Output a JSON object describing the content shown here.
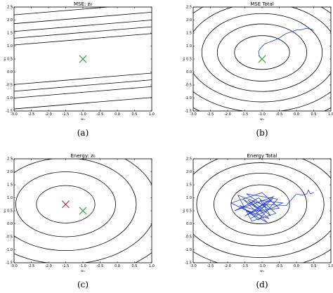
{
  "chart_data": [
    {
      "id": "a",
      "type": "contour",
      "title": "MSE: z₀",
      "caption": "(a)",
      "xlabel": "w₁",
      "ylabel": "w₂",
      "xlim": [
        -3.0,
        1.0
      ],
      "ylim": [
        -1.5,
        2.5
      ],
      "xticks": [
        "-3.0",
        "-2.5",
        "-2.0",
        "-1.5",
        "-1.0",
        "-0.5",
        "0.0",
        "0.5",
        "1.0"
      ],
      "yticks": [
        "-1.5",
        "-1.0",
        "-0.5",
        "0.0",
        "0.5",
        "1.0",
        "1.5",
        "2.0",
        "2.5"
      ],
      "contours": {
        "kind": "parallel_lines",
        "slope": 0.11,
        "center": [
          -1.0,
          0.5
        ],
        "offsets": [
          -1.7,
          -1.28,
          -1.02,
          -0.76,
          0.76,
          1.02,
          1.28,
          1.58,
          1.92
        ]
      },
      "markers": [
        {
          "x": -1.0,
          "y": 0.5,
          "symbol": "x",
          "color": "#2ca02c"
        }
      ],
      "path": []
    },
    {
      "id": "b",
      "type": "contour",
      "title": "MSE Total",
      "caption": "(b)",
      "xlabel": "w₁",
      "ylabel": "w₂",
      "xlim": [
        -3.0,
        1.0
      ],
      "ylim": [
        -1.5,
        2.5
      ],
      "xticks": [
        "-3.0",
        "-2.5",
        "-2.0",
        "-1.5",
        "-1.0",
        "-0.5",
        "0.0",
        "0.5",
        "1.0"
      ],
      "yticks": [
        "-1.5",
        "-1.0",
        "-0.5",
        "0.0",
        "0.5",
        "1.0",
        "1.5",
        "2.0",
        "2.5"
      ],
      "contours": {
        "kind": "ellipses",
        "center": [
          -1.0,
          0.75
        ],
        "radii": [
          [
            0.8,
            0.65
          ],
          [
            1.3,
            1.1
          ],
          [
            1.75,
            1.5
          ],
          [
            2.2,
            1.9
          ],
          [
            2.65,
            2.3
          ],
          [
            3.15,
            2.75
          ]
        ]
      },
      "markers": [
        {
          "x": -1.0,
          "y": 0.5,
          "symbol": "x",
          "color": "#2ca02c"
        }
      ],
      "path": {
        "color": "#1f3fd0",
        "points": [
          [
            -1.0,
            0.5
          ],
          [
            -1.08,
            0.62
          ],
          [
            -1.1,
            0.8
          ],
          [
            -1.02,
            0.95
          ],
          [
            -0.92,
            1.08
          ],
          [
            -0.85,
            1.12
          ],
          [
            -0.72,
            1.18
          ],
          [
            -0.55,
            1.27
          ],
          [
            -0.45,
            1.35
          ],
          [
            -0.3,
            1.48
          ],
          [
            -0.15,
            1.55
          ],
          [
            0.0,
            1.62
          ],
          [
            0.15,
            1.63
          ],
          [
            0.28,
            1.68
          ],
          [
            0.42,
            1.65
          ],
          [
            0.5,
            1.6
          ]
        ]
      }
    },
    {
      "id": "c",
      "type": "contour",
      "title": "Energy: z₀",
      "caption": "(c)",
      "xlabel": "w₁",
      "ylabel": "w₂",
      "xlim": [
        -3.0,
        1.0
      ],
      "ylim": [
        -1.5,
        2.5
      ],
      "xticks": [
        "-3.0",
        "-2.5",
        "-2.0",
        "-1.5",
        "-1.0",
        "-0.5",
        "0.0",
        "0.5",
        "1.0"
      ],
      "yticks": [
        "-1.5",
        "-1.0",
        "-0.5",
        "0.0",
        "0.5",
        "1.0",
        "1.5",
        "2.0",
        "2.5"
      ],
      "contours": {
        "kind": "ellipses",
        "center": [
          -1.5,
          0.75
        ],
        "radii": [
          [
            0.85,
            0.72
          ],
          [
            1.45,
            1.25
          ],
          [
            2.05,
            1.78
          ],
          [
            2.65,
            2.3
          ],
          [
            3.3,
            2.85
          ]
        ]
      },
      "markers": [
        {
          "x": -1.5,
          "y": 0.75,
          "symbol": "x",
          "color": "#d62728"
        },
        {
          "x": -1.0,
          "y": 0.5,
          "symbol": "x",
          "color": "#2ca02c"
        }
      ],
      "path": []
    },
    {
      "id": "d",
      "type": "contour",
      "title": "Energy Total",
      "caption": "(d)",
      "xlabel": "w₁",
      "ylabel": "w₂",
      "xlim": [
        -3.0,
        1.0
      ],
      "ylim": [
        -1.5,
        2.5
      ],
      "xticks": [
        "-3.0",
        "-2.5",
        "-2.0",
        "-1.5",
        "-1.0",
        "-0.5",
        "0.0",
        "0.5",
        "1.0"
      ],
      "yticks": [
        "-1.5",
        "-1.0",
        "-0.5",
        "0.0",
        "0.5",
        "1.0",
        "1.5",
        "2.0",
        "2.5"
      ],
      "contours": {
        "kind": "ellipses",
        "center": [
          -1.05,
          0.75
        ],
        "radii": [
          [
            0.85,
            0.75
          ],
          [
            1.35,
            1.2
          ],
          [
            1.85,
            1.6
          ],
          [
            2.35,
            2.05
          ],
          [
            2.85,
            2.5
          ],
          [
            3.4,
            2.95
          ]
        ]
      },
      "markers": [],
      "path": {
        "color": "#1f3fd0",
        "points": [
          [
            -1.0,
            0.5
          ],
          [
            -1.4,
            0.9
          ],
          [
            -0.8,
            0.2
          ],
          [
            -1.6,
            0.6
          ],
          [
            -1.1,
            1.0
          ],
          [
            -0.6,
            0.4
          ],
          [
            -1.3,
            0.1
          ],
          [
            -1.7,
            1.1
          ],
          [
            -0.9,
            0.7
          ],
          [
            -1.5,
            0.3
          ],
          [
            -0.7,
            0.95
          ],
          [
            -1.2,
            0.35
          ],
          [
            -1.9,
            0.8
          ],
          [
            -1.0,
            1.2
          ],
          [
            -0.5,
            0.6
          ],
          [
            -1.4,
            0.45
          ],
          [
            -0.85,
            0.05
          ],
          [
            -1.55,
            0.95
          ],
          [
            -1.15,
            0.6
          ],
          [
            -0.65,
            1.05
          ],
          [
            -1.8,
            0.5
          ],
          [
            -1.25,
            0.85
          ],
          [
            -0.75,
            0.3
          ],
          [
            -1.05,
            0.9
          ],
          [
            -0.4,
            0.8
          ],
          [
            -1.35,
            0.2
          ],
          [
            -0.95,
            0.45
          ],
          [
            -1.65,
            0.7
          ],
          [
            -1.1,
            0.15
          ],
          [
            -0.55,
            0.95
          ],
          [
            -1.45,
            1.15
          ],
          [
            -0.8,
            0.55
          ],
          [
            -1.0,
            0.75
          ],
          [
            -0.3,
            0.7
          ],
          [
            -0.1,
            1.0
          ],
          [
            0.0,
            1.15
          ],
          [
            0.15,
            1.1
          ],
          [
            0.3,
            1.15
          ],
          [
            0.35,
            1.3
          ],
          [
            0.4,
            1.15
          ],
          [
            0.5,
            1.2
          ]
        ]
      }
    }
  ]
}
